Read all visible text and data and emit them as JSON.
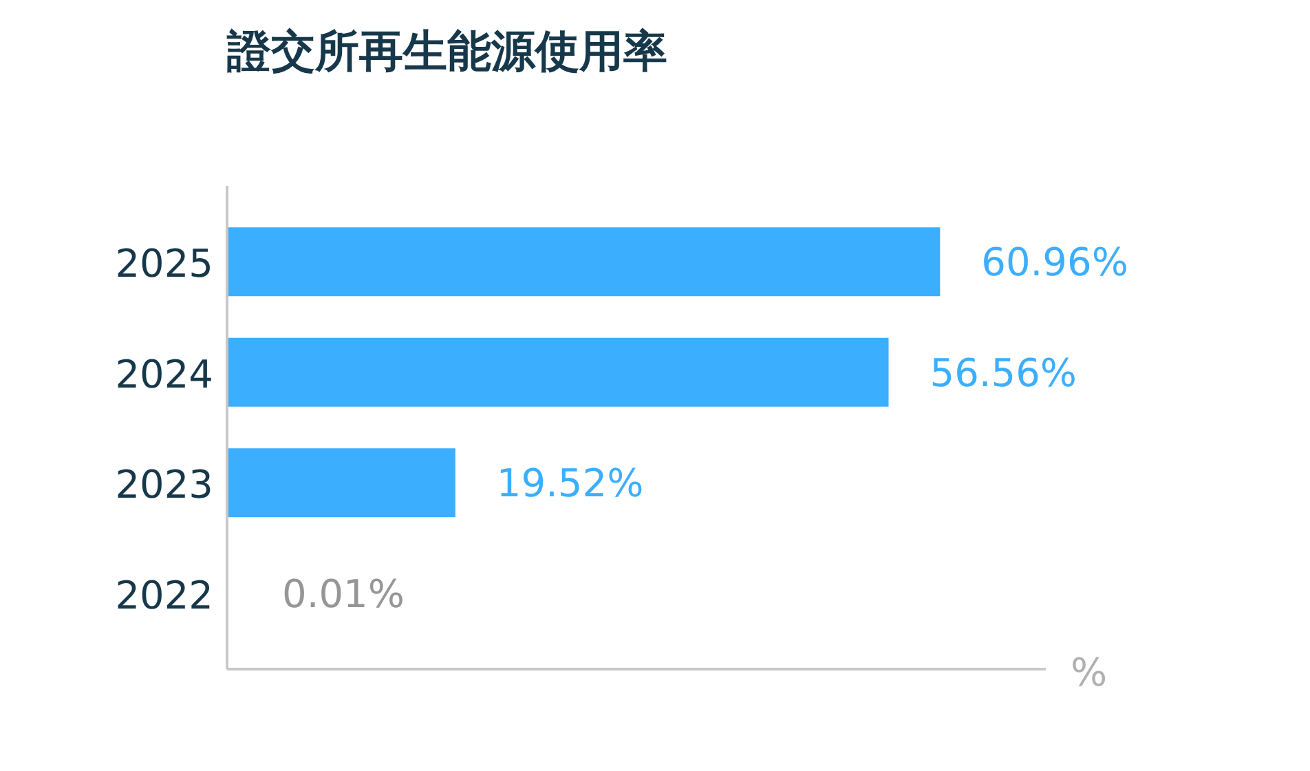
{
  "chart_data": {
    "type": "bar",
    "orientation": "horizontal",
    "title": "證交所再生能源使用率",
    "categories": [
      "2025",
      "2024",
      "2023",
      "2022"
    ],
    "values": [
      60.96,
      56.56,
      19.52,
      0.01
    ],
    "colors": [
      "#3caefe",
      "#3caefe",
      "#3caefe",
      "#c8c8c8"
    ],
    "value_labels": [
      "60.96%",
      "56.56%",
      "19.52%",
      "0.01%"
    ],
    "xlabel": "%",
    "xlim": [
      0,
      70
    ],
    "tick_labels": "y"
  }
}
